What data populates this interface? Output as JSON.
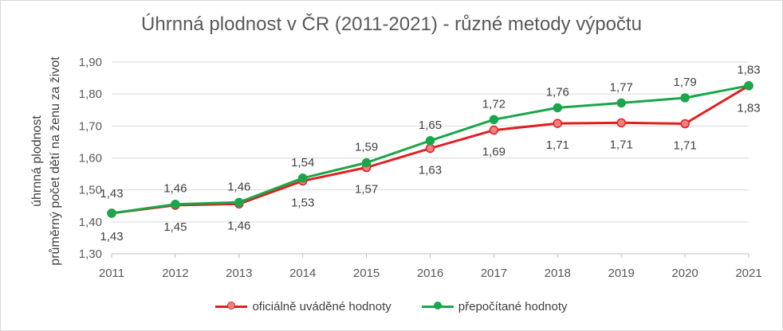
{
  "chart_data": {
    "type": "line",
    "title": "Úhrnná plodnost v ČR (2011-2021) - různé metody výpočtu",
    "ylabel": [
      "úhrnná plodnost",
      "průměrný počet dětí na ženu za život"
    ],
    "xlabel": "",
    "categories": [
      "2011",
      "2012",
      "2013",
      "2014",
      "2015",
      "2016",
      "2017",
      "2018",
      "2019",
      "2020",
      "2021"
    ],
    "ylim": [
      1.3,
      1.9
    ],
    "yticks": [
      "1,30",
      "1,40",
      "1,50",
      "1,60",
      "1,70",
      "1,80",
      "1,90"
    ],
    "grid": true,
    "legend_position": "bottom",
    "series": [
      {
        "name": "oficiálně uváděné hodnoty",
        "color": "#e02020",
        "marker_fill": "#f08080",
        "values": [
          1.427,
          1.452,
          1.456,
          1.528,
          1.57,
          1.63,
          1.687,
          1.708,
          1.71,
          1.707,
          1.826
        ],
        "labels": [
          "1,43",
          "1,45",
          "1,46",
          "1,53",
          "1,57",
          "1,63",
          "1,69",
          "1,71",
          "1,71",
          "1,71",
          "1,83"
        ]
      },
      {
        "name": "přepočítané hodnoty",
        "color": "#1aa64a",
        "marker_fill": "#1aa64a",
        "values": [
          1.427,
          1.455,
          1.461,
          1.537,
          1.585,
          1.654,
          1.72,
          1.757,
          1.772,
          1.788,
          1.826
        ],
        "labels": [
          "1,43",
          "1,46",
          "1,46",
          "1,54",
          "1,59",
          "1,65",
          "1,72",
          "1,76",
          "1,77",
          "1,79",
          "1,83"
        ]
      }
    ]
  }
}
